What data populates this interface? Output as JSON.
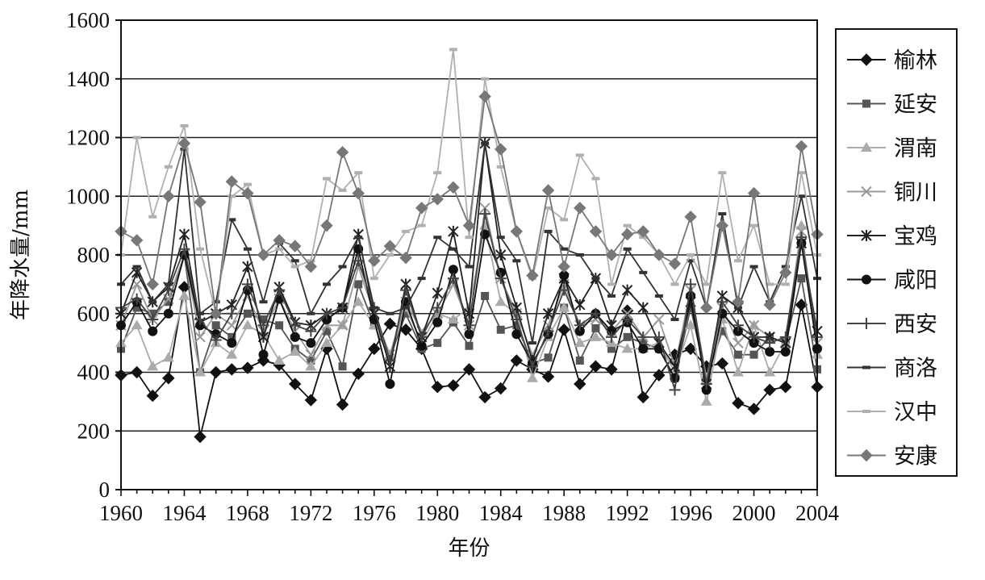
{
  "chart_data": {
    "type": "line",
    "xlabel": "年份",
    "ylabel": "年降水量/mm",
    "xlim": [
      1960,
      2004
    ],
    "ylim": [
      0,
      1600
    ],
    "x_ticks": [
      "1960",
      "1964",
      "1968",
      "1972",
      "1976",
      "1980",
      "1984",
      "1988",
      "1992",
      "1996",
      "2000",
      "2004"
    ],
    "y_ticks": [
      "0",
      "200",
      "400",
      "600",
      "800",
      "1000",
      "1200",
      "1400",
      "1600"
    ],
    "grid": "horizontal",
    "legend_position": "right",
    "x": [
      1960,
      1961,
      1962,
      1963,
      1964,
      1965,
      1966,
      1967,
      1968,
      1969,
      1970,
      1971,
      1972,
      1973,
      1974,
      1975,
      1976,
      1977,
      1978,
      1979,
      1980,
      1981,
      1982,
      1983,
      1984,
      1985,
      1986,
      1987,
      1988,
      1989,
      1990,
      1991,
      1992,
      1993,
      1994,
      1995,
      1996,
      1997,
      1998,
      1999,
      2000,
      2001,
      2002,
      2003,
      2004
    ],
    "series": [
      {
        "name": "榆林",
        "color": "#111111",
        "marker": "diamond",
        "dash": "",
        "values": [
          390,
          400,
          320,
          380,
          690,
          180,
          400,
          410,
          415,
          440,
          425,
          360,
          305,
          480,
          290,
          395,
          480,
          565,
          545,
          480,
          350,
          355,
          410,
          315,
          345,
          440,
          410,
          385,
          545,
          360,
          420,
          410,
          610,
          315,
          390,
          460,
          480,
          420,
          430,
          295,
          275,
          340,
          350,
          630,
          350
        ]
      },
      {
        "name": "延安",
        "color": "#555555",
        "marker": "square",
        "dash": "",
        "values": [
          480,
          620,
          600,
          640,
          800,
          400,
          560,
          520,
          600,
          580,
          560,
          480,
          440,
          540,
          420,
          700,
          560,
          450,
          600,
          480,
          500,
          570,
          490,
          660,
          545,
          560,
          430,
          450,
          620,
          440,
          550,
          480,
          520,
          500,
          480,
          380,
          620,
          380,
          540,
          460,
          460,
          520,
          500,
          720,
          410
        ]
      },
      {
        "name": "渭南",
        "color": "#aaaaaa",
        "marker": "triangle",
        "dash": "",
        "values": [
          500,
          560,
          420,
          450,
          660,
          400,
          500,
          460,
          560,
          530,
          440,
          470,
          420,
          500,
          560,
          640,
          560,
          460,
          620,
          500,
          600,
          580,
          620,
          900,
          640,
          600,
          380,
          520,
          620,
          500,
          520,
          500,
          480,
          480,
          500,
          400,
          560,
          300,
          580,
          400,
          560,
          400,
          500,
          900,
          460
        ]
      },
      {
        "name": "铜川",
        "color": "#999999",
        "marker": "x",
        "dash": "",
        "values": [
          560,
          700,
          580,
          650,
          800,
          520,
          600,
          560,
          660,
          540,
          650,
          540,
          460,
          560,
          560,
          760,
          600,
          460,
          640,
          540,
          600,
          700,
          560,
          960,
          720,
          600,
          460,
          560,
          700,
          560,
          580,
          540,
          600,
          520,
          580,
          420,
          680,
          380,
          620,
          500,
          560,
          520,
          500,
          880,
          500
        ]
      },
      {
        "name": "宝鸡",
        "color": "#222222",
        "marker": "asterisk",
        "dash": "",
        "values": [
          600,
          740,
          640,
          690,
          870,
          570,
          600,
          630,
          760,
          520,
          690,
          570,
          560,
          600,
          620,
          870,
          600,
          420,
          700,
          520,
          670,
          880,
          600,
          1180,
          800,
          620,
          440,
          600,
          720,
          630,
          720,
          560,
          680,
          620,
          500,
          420,
          640,
          360,
          660,
          620,
          520,
          520,
          500,
          840,
          540
        ]
      },
      {
        "name": "咸阳",
        "color": "#111111",
        "marker": "circle",
        "dash": "",
        "values": [
          560,
          640,
          540,
          600,
          800,
          560,
          530,
          500,
          680,
          460,
          650,
          520,
          500,
          580,
          620,
          820,
          580,
          360,
          640,
          490,
          570,
          750,
          530,
          870,
          740,
          530,
          430,
          530,
          730,
          540,
          600,
          540,
          570,
          480,
          480,
          380,
          660,
          340,
          600,
          540,
          500,
          470,
          470,
          840,
          480
        ]
      },
      {
        "name": "西安",
        "color": "#444444",
        "marker": "plus",
        "dash": "",
        "values": [
          620,
          650,
          580,
          680,
          820,
          580,
          510,
          600,
          700,
          560,
          680,
          560,
          540,
          600,
          620,
          780,
          620,
          440,
          680,
          520,
          620,
          720,
          560,
          940,
          720,
          580,
          420,
          540,
          680,
          560,
          600,
          520,
          580,
          520,
          520,
          340,
          700,
          360,
          640,
          560,
          520,
          500,
          520,
          860,
          520
        ]
      },
      {
        "name": "商洛",
        "color": "#333333",
        "marker": "dash",
        "dash": "",
        "values": [
          700,
          760,
          640,
          700,
          1160,
          600,
          640,
          920,
          820,
          640,
          840,
          780,
          600,
          700,
          760,
          860,
          620,
          600,
          620,
          720,
          860,
          820,
          760,
          1180,
          860,
          780,
          500,
          880,
          820,
          800,
          720,
          660,
          820,
          740,
          660,
          580,
          780,
          620,
          940,
          620,
          760,
          640,
          760,
          1000,
          720
        ]
      },
      {
        "name": "汉中",
        "color": "#b0b0b0",
        "marker": "dash-light",
        "dash": "",
        "values": [
          800,
          1200,
          930,
          1100,
          1240,
          820,
          600,
          1000,
          1040,
          800,
          820,
          760,
          780,
          1060,
          1020,
          1080,
          720,
          800,
          880,
          900,
          1080,
          1500,
          860,
          1400,
          1100,
          880,
          720,
          960,
          920,
          1140,
          1060,
          700,
          900,
          860,
          800,
          700,
          800,
          700,
          1080,
          780,
          900,
          700,
          700,
          1080,
          800
        ]
      },
      {
        "name": "安康",
        "color": "#777777",
        "marker": "diamond-gray",
        "dash": "",
        "values": [
          880,
          850,
          700,
          1000,
          1180,
          980,
          600,
          1050,
          1010,
          800,
          850,
          830,
          760,
          900,
          1150,
          1010,
          780,
          830,
          790,
          960,
          990,
          1030,
          900,
          1340,
          1160,
          880,
          730,
          1020,
          760,
          960,
          880,
          800,
          870,
          880,
          800,
          770,
          930,
          620,
          900,
          640,
          1010,
          630,
          740,
          1170,
          870
        ]
      }
    ]
  }
}
